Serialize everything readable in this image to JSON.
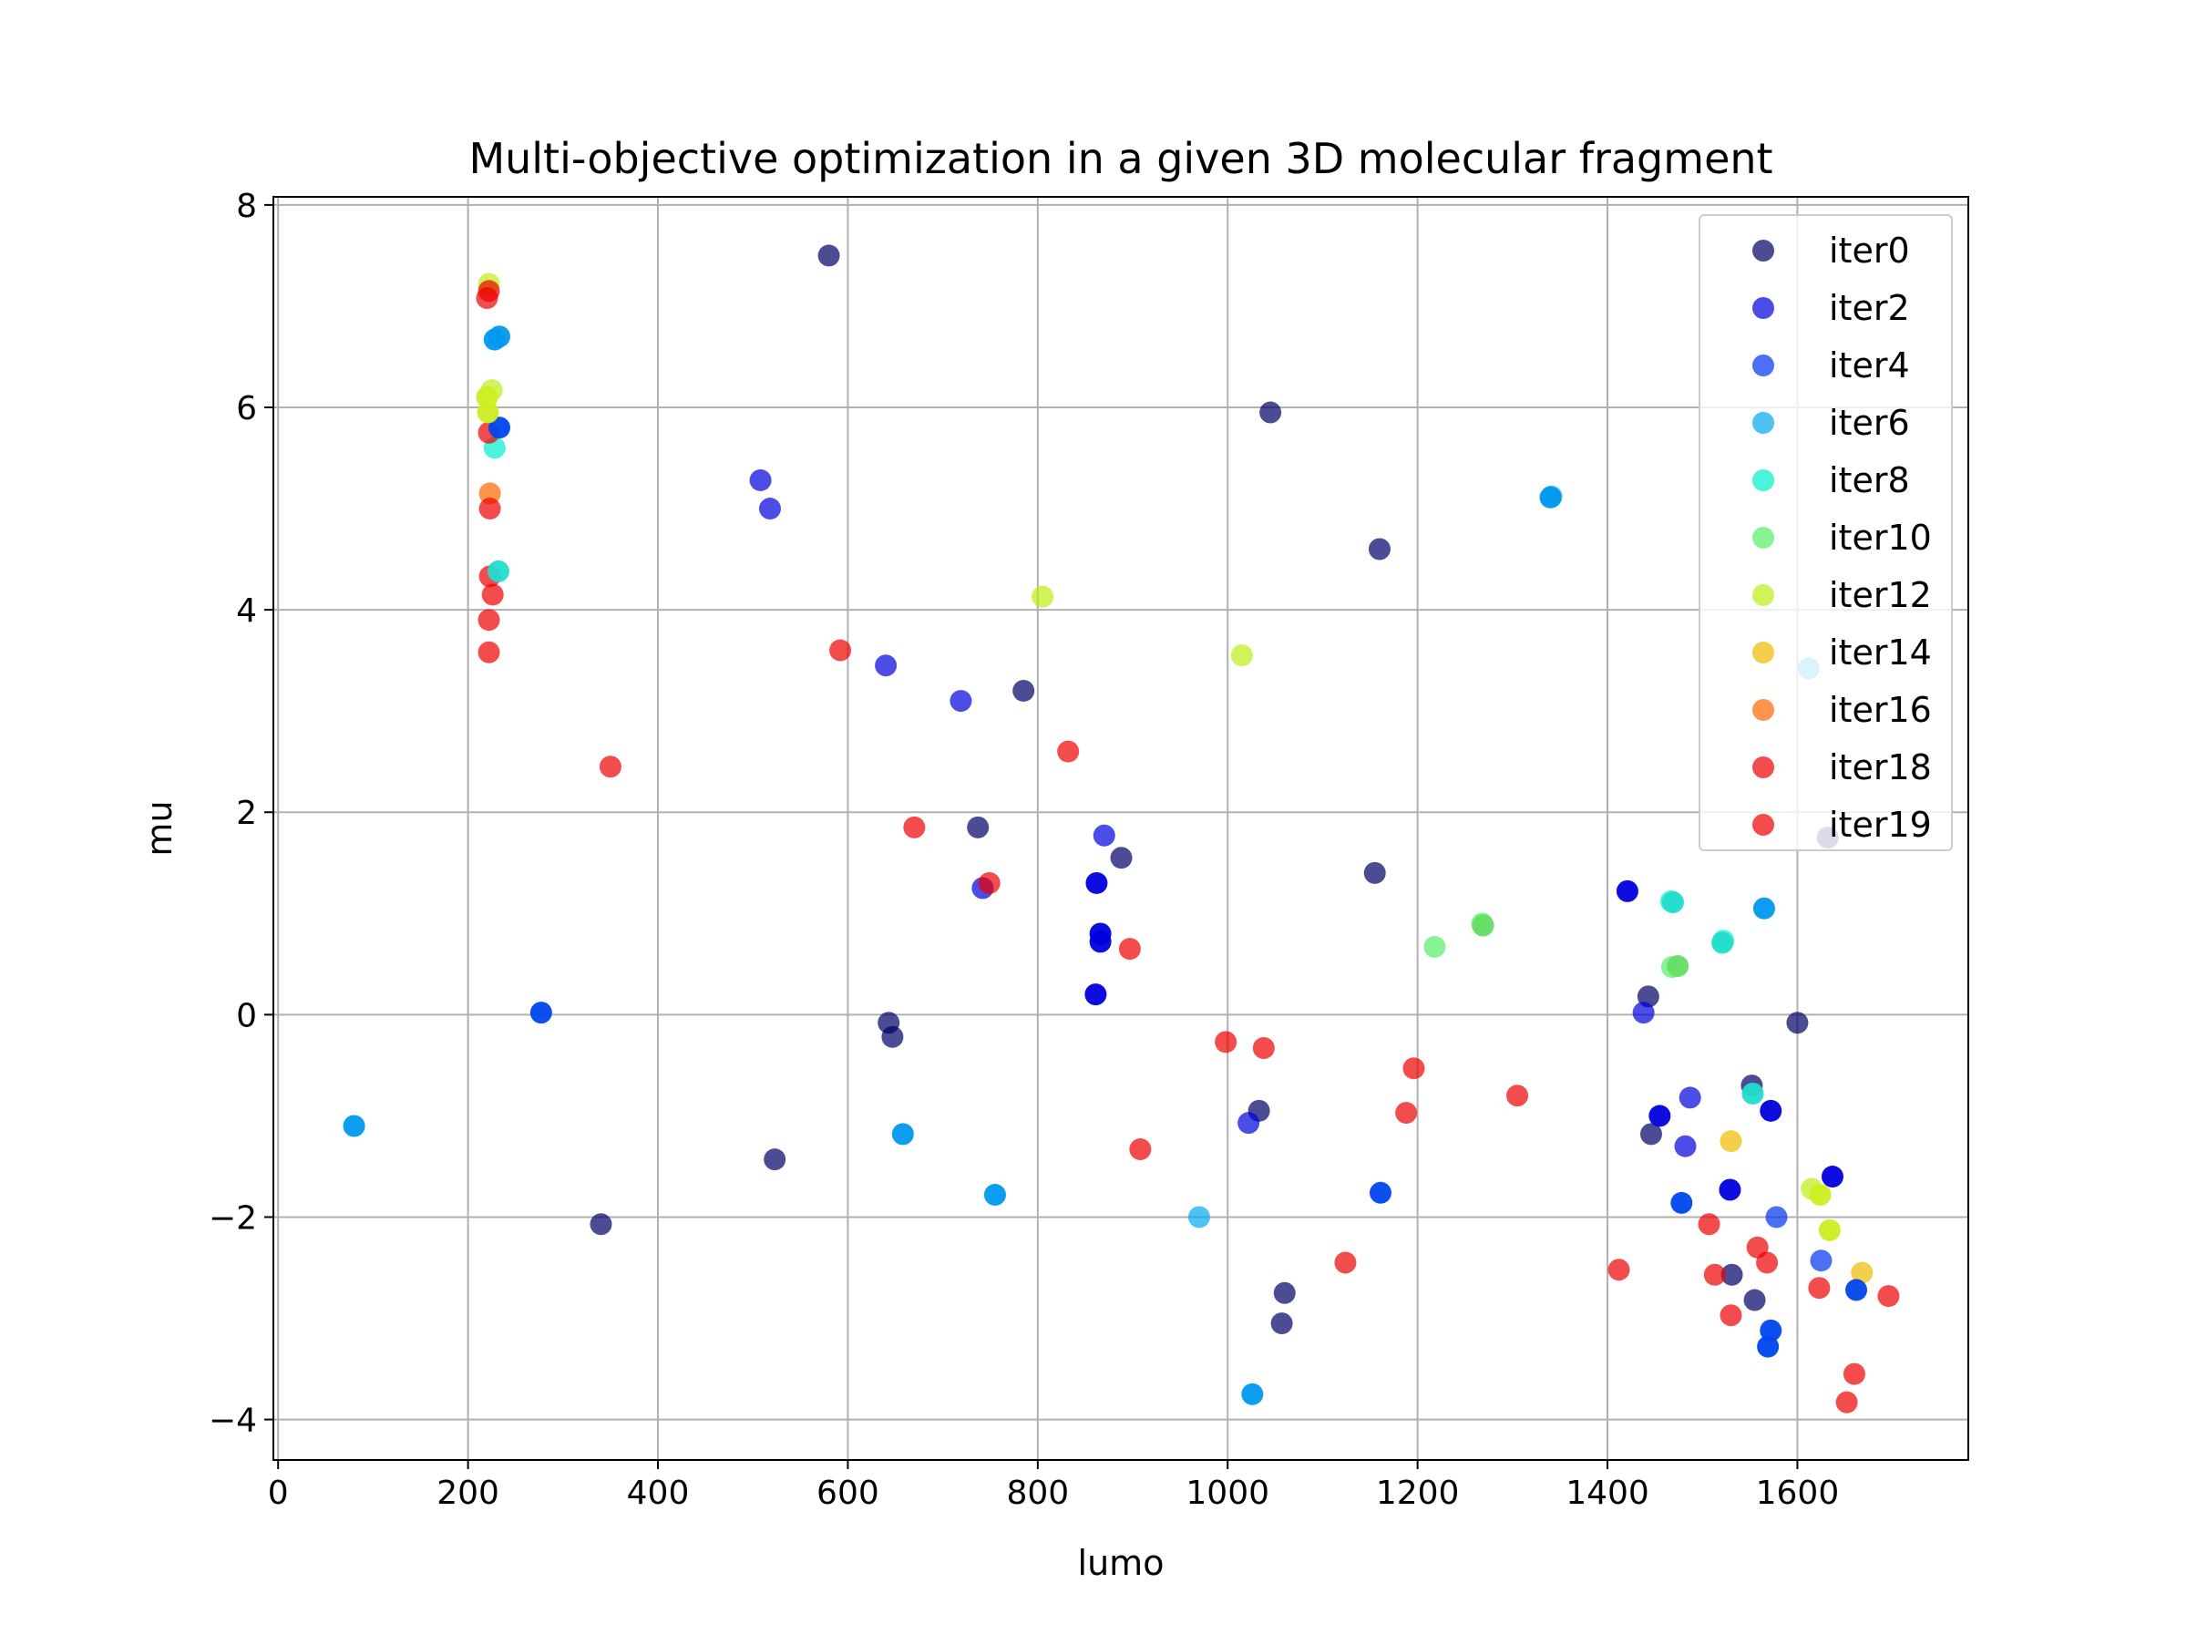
{
  "chart_data": {
    "type": "scatter",
    "title": "Multi-objective optimization in a given 3D molecular fragment",
    "xlabel": "lumo",
    "ylabel": "mu",
    "xlim": [
      -5,
      1780
    ],
    "ylim": [
      -4.4,
      8.08
    ],
    "xticks": [
      0,
      200,
      400,
      600,
      800,
      1000,
      1200,
      1400,
      1600
    ],
    "yticks": [
      -4,
      -2,
      0,
      2,
      4,
      6,
      8
    ],
    "grid": true,
    "legend_position": "top-right",
    "series": [
      {
        "name": "iter0",
        "color": "#000066",
        "opacity": 0.7,
        "points": [
          [
            580,
            7.5
          ],
          [
            1045,
            5.95
          ],
          [
            1160,
            4.6
          ],
          [
            785,
            3.2
          ],
          [
            737,
            1.85
          ],
          [
            888,
            1.55
          ],
          [
            1155,
            1.4
          ],
          [
            1443,
            0.18
          ],
          [
            643,
            -0.08
          ],
          [
            647,
            -0.22
          ],
          [
            1600,
            -0.08
          ],
          [
            1552,
            -0.7
          ],
          [
            1033,
            -0.95
          ],
          [
            1446,
            -1.18
          ],
          [
            523,
            -1.43
          ],
          [
            340,
            -2.07
          ],
          [
            1060,
            -2.75
          ],
          [
            1531,
            -2.57
          ],
          [
            1555,
            -2.82
          ],
          [
            1057,
            -3.05
          ],
          [
            1632,
            1.75
          ]
        ]
      },
      {
        "name": "iter2",
        "color": "#0000dd",
        "opacity": 0.7,
        "points": [
          [
            508,
            5.28
          ],
          [
            518,
            5.0
          ],
          [
            640,
            3.45
          ],
          [
            719,
            3.1
          ],
          [
            870,
            1.77
          ],
          [
            742,
            1.25
          ],
          [
            1022,
            -1.07
          ],
          [
            1438,
            0.02
          ],
          [
            1487,
            -0.82
          ],
          [
            1482,
            -1.3
          ]
        ]
      },
      {
        "name": "iter4",
        "color": "#0033ee",
        "opacity": 0.7,
        "points": [
          [
            1625,
            -2.43
          ],
          [
            1578,
            -2.0
          ]
        ]
      },
      {
        "name": "iter6",
        "color": "#00aaee",
        "opacity": 0.7,
        "points": [
          [
            1341,
            5.12
          ],
          [
            970,
            -2.0
          ],
          [
            1612,
            3.42
          ]
        ]
      },
      {
        "name": "iter8",
        "color": "#00eecc",
        "opacity": 0.7,
        "points": [
          [
            228,
            5.6
          ],
          [
            1467,
            1.12
          ],
          [
            1522,
            0.73
          ]
        ]
      },
      {
        "name": "iter10",
        "color": "#55ee66",
        "opacity": 0.7,
        "points": [
          [
            1268,
            0.9
          ],
          [
            1468,
            0.47
          ],
          [
            1218,
            0.67
          ]
        ]
      },
      {
        "name": "iter12",
        "color": "#bbee11",
        "opacity": 0.7,
        "points": [
          [
            222,
            7.22
          ],
          [
            225,
            6.17
          ],
          [
            805,
            4.13
          ],
          [
            1015,
            3.55
          ],
          [
            1615,
            -1.72
          ]
        ]
      },
      {
        "name": "iter14",
        "color": "#eebb00",
        "opacity": 0.7,
        "points": [
          [
            1530,
            -1.25
          ],
          [
            1668,
            -2.55
          ]
        ]
      },
      {
        "name": "iter16",
        "color": "#ff6600",
        "opacity": 0.7,
        "points": [
          [
            223,
            5.15
          ]
        ]
      },
      {
        "name": "iter18",
        "color": "#ee0000",
        "opacity": 0.7,
        "points": [
          [
            222,
            3.58
          ],
          [
            1530,
            -2.97
          ]
        ]
      },
      {
        "name": "iter19",
        "color": "#ee0000",
        "opacity": 0.7,
        "points": [
          [
            222,
            7.15
          ],
          [
            220,
            7.08
          ],
          [
            222,
            5.75
          ],
          [
            223,
            5.0
          ],
          [
            223,
            4.33
          ],
          [
            222,
            3.9
          ],
          [
            226,
            4.15
          ],
          [
            350,
            2.45
          ],
          [
            592,
            3.6
          ],
          [
            832,
            2.6
          ],
          [
            670,
            1.85
          ],
          [
            749,
            1.3
          ],
          [
            897,
            0.65
          ],
          [
            998,
            -0.27
          ],
          [
            1038,
            -0.33
          ],
          [
            1196,
            -0.53
          ],
          [
            1305,
            -0.8
          ],
          [
            1188,
            -0.97
          ],
          [
            908,
            -1.33
          ],
          [
            1124,
            -2.45
          ],
          [
            1412,
            -2.52
          ],
          [
            1507,
            -2.07
          ],
          [
            1513,
            -2.57
          ],
          [
            1558,
            -2.3
          ],
          [
            1568,
            -2.45
          ],
          [
            1623,
            -2.7
          ],
          [
            1696,
            -2.78
          ],
          [
            1660,
            -3.55
          ],
          [
            1652,
            -3.83
          ]
        ]
      },
      {
        "name": "",
        "color": "#0000dd",
        "opacity": 0.95,
        "points": [
          [
            862,
            1.3
          ],
          [
            866,
            0.8
          ],
          [
            866,
            0.72
          ],
          [
            861,
            0.2
          ],
          [
            1421,
            1.22
          ],
          [
            1455,
            -1.0
          ],
          [
            1572,
            -0.95
          ],
          [
            1529,
            -1.73
          ],
          [
            1637,
            -1.6
          ]
        ]
      },
      {
        "name": "",
        "color": "#0044ee",
        "opacity": 0.95,
        "points": [
          [
            277,
            0.02
          ],
          [
            233,
            5.8
          ],
          [
            1161,
            -1.76
          ],
          [
            1478,
            -1.86
          ],
          [
            1572,
            -3.12
          ],
          [
            1569,
            -3.28
          ],
          [
            1662,
            -2.72
          ]
        ]
      },
      {
        "name": "",
        "color": "#0099ee",
        "opacity": 0.95,
        "points": [
          [
            80,
            -1.1
          ],
          [
            228,
            6.67
          ],
          [
            233,
            6.7
          ],
          [
            1340,
            5.11
          ],
          [
            658,
            -1.18
          ],
          [
            755,
            -1.78
          ],
          [
            1565,
            1.05
          ],
          [
            1026,
            -3.75
          ]
        ]
      },
      {
        "name": "",
        "color": "#22ddcc",
        "opacity": 0.95,
        "points": [
          [
            232,
            4.38
          ],
          [
            1553,
            -0.78
          ],
          [
            1521,
            0.71
          ],
          [
            1469,
            1.11
          ]
        ]
      },
      {
        "name": "",
        "color": "#66dd66",
        "opacity": 0.95,
        "points": [
          [
            1269,
            0.88
          ],
          [
            1474,
            0.48
          ]
        ]
      },
      {
        "name": "",
        "color": "#ccee22",
        "opacity": 0.95,
        "points": [
          [
            220,
            6.1
          ],
          [
            221,
            5.95
          ],
          [
            1624,
            -1.78
          ],
          [
            1634,
            -2.13
          ]
        ]
      }
    ]
  }
}
